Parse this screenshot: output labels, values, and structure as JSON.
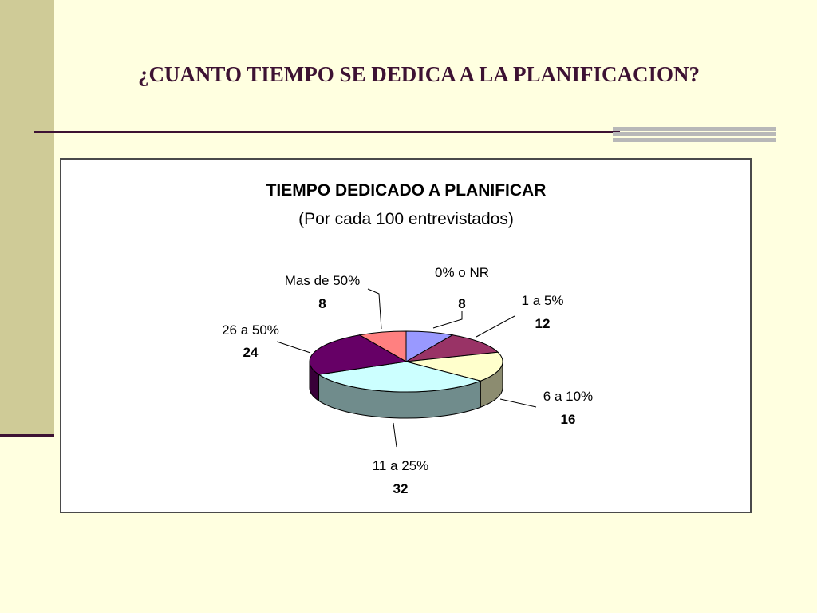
{
  "slide": {
    "title": "¿CUANTO TIEMPO SE DEDICA A LA PLANIFICACION?"
  },
  "colors": {
    "background": "#ffffe0",
    "side_band": "#cfcb97",
    "accent_dark": "#3d1233",
    "gray_bars": "#b8b8b8"
  },
  "chart_data": {
    "type": "pie",
    "title": "TIEMPO DEDICADO A PLANIFICAR",
    "subtitle": "(Por cada 100 entrevistados)",
    "three_d": true,
    "slices": [
      {
        "label": "0% o NR",
        "value": 8,
        "color": "#9999ff"
      },
      {
        "label": "1 a 5%",
        "value": 12,
        "color": "#993366"
      },
      {
        "label": "6 a 10%",
        "value": 16,
        "color": "#ffffcc"
      },
      {
        "label": "11 a 25%",
        "value": 32,
        "color": "#ccffff"
      },
      {
        "label": "26 a 50%",
        "value": 24,
        "color": "#660066"
      },
      {
        "label": "Mas de 50%",
        "value": 8,
        "color": "#ff8080"
      }
    ]
  }
}
